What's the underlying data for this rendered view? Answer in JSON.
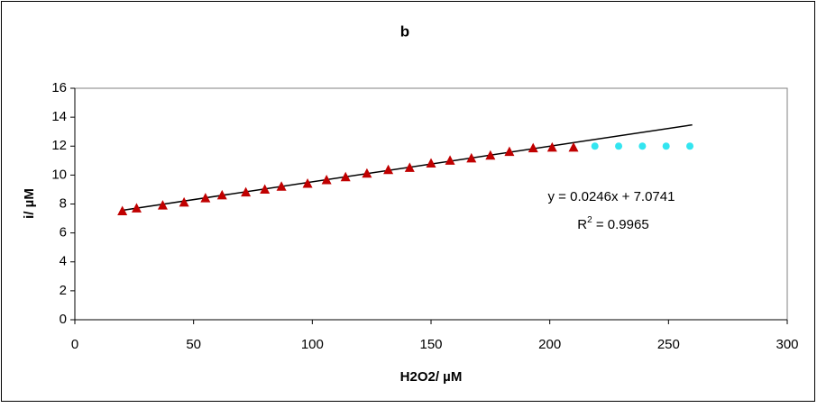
{
  "chart_data": {
    "type": "scatter",
    "title": "b",
    "x_label": "H2O2/ µM",
    "y_label": "i/ µM",
    "xlim": [
      0,
      300
    ],
    "xticks": [
      0,
      50,
      100,
      150,
      200,
      250,
      300
    ],
    "ylim": [
      0,
      16
    ],
    "yticks": [
      0,
      2,
      4,
      6,
      8,
      10,
      12,
      14,
      16
    ],
    "grid": false,
    "series": [
      {
        "marker": "triangle",
        "color": "#c00000",
        "x": [
          20,
          26,
          37,
          46,
          55,
          62,
          72,
          80,
          87,
          98,
          106,
          114,
          123,
          132,
          141,
          150,
          158,
          167,
          175,
          183,
          193,
          201,
          210
        ],
        "values": [
          7.5,
          7.7,
          7.9,
          8.1,
          8.4,
          8.6,
          8.8,
          9.0,
          9.2,
          9.4,
          9.65,
          9.85,
          10.1,
          10.35,
          10.5,
          10.8,
          11.0,
          11.15,
          11.35,
          11.6,
          11.85,
          11.9,
          11.9
        ]
      },
      {
        "marker": "circle",
        "color": "#33e5f0",
        "x": [
          219,
          229,
          239,
          249,
          259
        ],
        "values": [
          12,
          12,
          12,
          12,
          12
        ]
      }
    ],
    "trendline": {
      "color": "#000000",
      "x": [
        20,
        260
      ],
      "values": [
        7.566,
        13.47
      ]
    },
    "equation": "y = 0.0246x + 7.0741",
    "r2": {
      "base": "R",
      "sup": "2",
      "rest": " = 0.9965"
    }
  }
}
